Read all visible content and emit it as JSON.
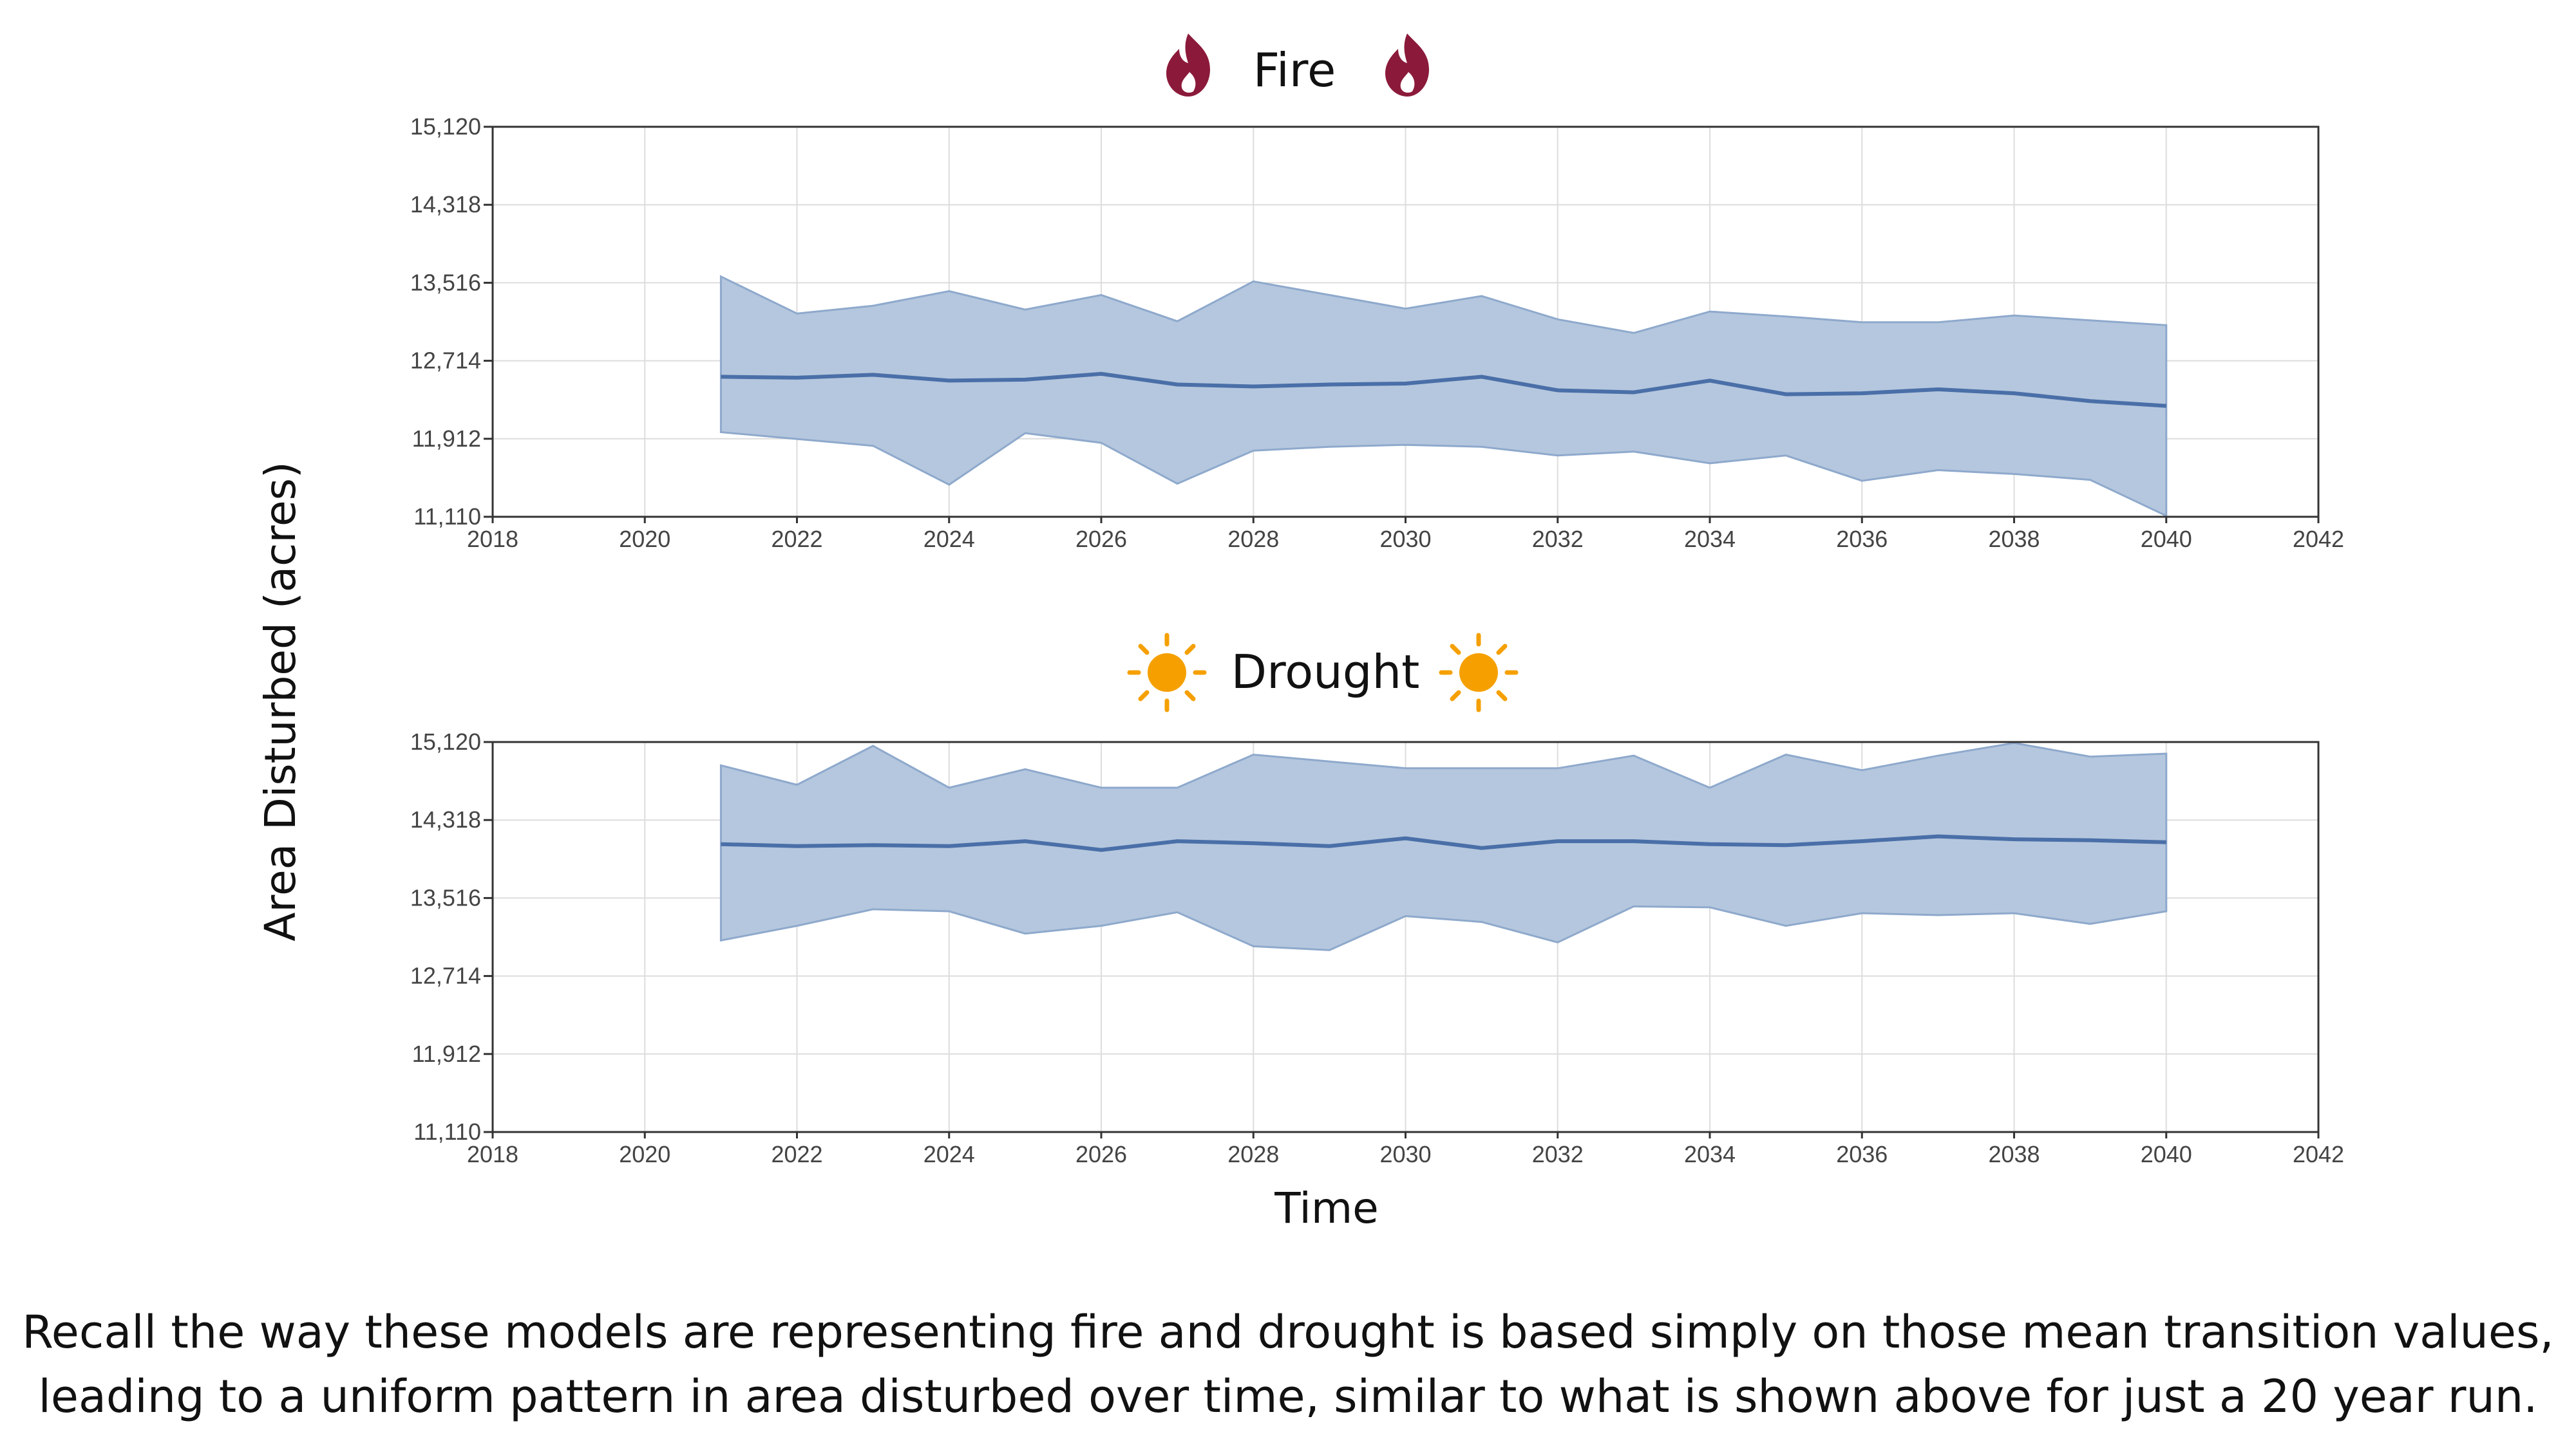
{
  "colors": {
    "band": "#b5c7de",
    "band_edge": "#8ea9cc",
    "mean_line": "#4a6fa8",
    "fire_icon": "#8b1a3a",
    "sun_icon": "#f5a000",
    "grid": "#dddddd"
  },
  "icons": {
    "fire": "flame-icon",
    "drought": "sun-icon"
  },
  "ylabel": "Area Disturbed (acres)",
  "xlabel": "Time",
  "caption": {
    "line1": "Recall the way these models are representing fire and drought is based simply on those mean transition values,",
    "line2": "leading to a uniform pattern in area disturbed over time, similar to what is shown above for just a 20 year run."
  },
  "chart_data": [
    {
      "type": "area",
      "title": "Fire",
      "xlabel": "",
      "ylabel": "",
      "xlim": [
        2018,
        2042
      ],
      "ylim": [
        11110,
        15120
      ],
      "xticks": [
        "2018",
        "2020",
        "2022",
        "2024",
        "2026",
        "2028",
        "2030",
        "2032",
        "2034",
        "2036",
        "2038",
        "2040",
        "2042"
      ],
      "yticks": [
        "15,120",
        "14,318",
        "13,516",
        "12,714",
        "11,912",
        "11,110"
      ],
      "grid": true,
      "x": [
        2021,
        2022,
        2023,
        2024,
        2025,
        2026,
        2027,
        2028,
        2029,
        2030,
        2031,
        2032,
        2033,
        2034,
        2035,
        2036,
        2037,
        2038,
        2039,
        2040
      ],
      "series": [
        {
          "values": [
            12550,
            12540,
            12570,
            12510,
            12520,
            12580,
            12470,
            12450,
            12470,
            12480,
            12550,
            12410,
            12390,
            12510,
            12370,
            12380,
            12420,
            12380,
            12300,
            12250
          ]
        },
        {
          "values": [
            13580,
            13200,
            13280,
            13430,
            13240,
            13390,
            13120,
            13530,
            13390,
            13250,
            13380,
            13140,
            13000,
            13220,
            13170,
            13110,
            13110,
            13180,
            13130,
            13080
          ]
        },
        {
          "values": [
            11980,
            11910,
            11840,
            11440,
            11970,
            11870,
            11450,
            11790,
            11830,
            11850,
            11830,
            11740,
            11780,
            11660,
            11740,
            11480,
            11590,
            11550,
            11490,
            11120
          ]
        }
      ]
    },
    {
      "type": "area",
      "title": "Drought",
      "xlabel": "",
      "ylabel": "",
      "xlim": [
        2018,
        2042
      ],
      "ylim": [
        11110,
        15120
      ],
      "xticks": [
        "2018",
        "2020",
        "2022",
        "2024",
        "2026",
        "2028",
        "2030",
        "2032",
        "2034",
        "2036",
        "2038",
        "2040",
        "2042"
      ],
      "yticks": [
        "15,120",
        "14,318",
        "13,516",
        "12,714",
        "11,912",
        "11,110"
      ],
      "grid": true,
      "x": [
        2021,
        2022,
        2023,
        2024,
        2025,
        2026,
        2027,
        2028,
        2029,
        2030,
        2031,
        2032,
        2033,
        2034,
        2035,
        2036,
        2037,
        2038,
        2039,
        2040
      ],
      "series": [
        {
          "values": [
            14070,
            14050,
            14060,
            14050,
            14100,
            14010,
            14100,
            14080,
            14050,
            14130,
            14030,
            14100,
            14100,
            14070,
            14060,
            14100,
            14150,
            14120,
            14110,
            14090
          ]
        },
        {
          "values": [
            14880,
            14680,
            15080,
            14650,
            14840,
            14650,
            14650,
            14990,
            14920,
            14850,
            14850,
            14850,
            14980,
            14650,
            14990,
            14830,
            14980,
            15110,
            14970,
            15000
          ]
        },
        {
          "values": [
            13080,
            13230,
            13400,
            13380,
            13150,
            13230,
            13370,
            13020,
            12980,
            13330,
            13270,
            13060,
            13430,
            13420,
            13230,
            13360,
            13340,
            13360,
            13250,
            13380
          ]
        }
      ]
    }
  ]
}
